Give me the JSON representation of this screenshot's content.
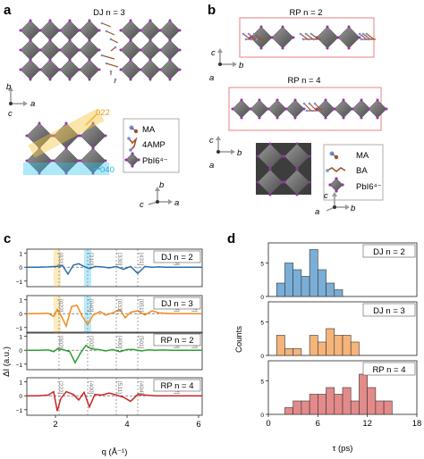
{
  "panels": {
    "a": {
      "letter": "a",
      "title": "DJ n = 3",
      "axes_top": {
        "vertical": "b",
        "horizontal": "a",
        "depth": "c"
      },
      "directions": [
        "022",
        "040"
      ],
      "legend": [
        {
          "name": "MA",
          "icon": "ma-molecule-icon"
        },
        {
          "name": "4AMP",
          "icon": "4amp-molecule-icon"
        },
        {
          "name": "PbI6⁴⁻",
          "icon": "octahedron-icon"
        }
      ],
      "axes_bottom": {
        "vertical": "b",
        "horizontal": "a",
        "depth": "c"
      }
    },
    "b": {
      "letter": "b",
      "title_top": "RP n = 2",
      "title_bottom": "RP n = 4",
      "axes_top": {
        "vertical": "c",
        "horizontal": "b",
        "depth": "a"
      },
      "axes_mid": {
        "vertical": "c",
        "horizontal": "b",
        "depth": "a"
      },
      "legend": [
        {
          "name": "MA",
          "icon": "ma-molecule-icon"
        },
        {
          "name": "BA",
          "icon": "ba-molecule-icon"
        },
        {
          "name": "PbI6⁴⁻",
          "icon": "octahedron-icon"
        }
      ],
      "axes_bottom": {
        "vertical": "c",
        "horizontal": "b",
        "depth": "a"
      }
    },
    "c": {
      "letter": "c",
      "xlabel": "q (Å⁻¹)",
      "ylabel": "ΔI (a.u.)",
      "xticks": [
        "2",
        "4",
        "6"
      ],
      "yticks": [
        "1",
        "0",
        "−1"
      ],
      "colors": {
        "dj2": "#2b6ea8",
        "dj3": "#f28a1f",
        "rp2": "#2e9e2e",
        "rp4": "#cc2424"
      },
      "highlight_colors": {
        "yellow": "#f5c542",
        "cyan": "#38c6f0"
      }
    },
    "d": {
      "letter": "d",
      "xlabel": "τ (ps)",
      "ylabel": "Counts",
      "xticks": [
        "0",
        "6",
        "12",
        "18"
      ],
      "yticks": [
        "5",
        "0"
      ],
      "colors": {
        "dj2": "#7aaed6",
        "dj3": "#f5b47a",
        "rp4": "#e38a8a"
      }
    }
  },
  "chart_data": [
    {
      "type": "line",
      "panel": "c",
      "xlim": [
        1.2,
        6.1
      ],
      "ylim": [
        -1.4,
        1.3
      ],
      "grid": false,
      "subplots": [
        {
          "label": "DJ n = 2",
          "color": "#2b6ea8",
          "peaks": [
            "[031]",
            "[310]",
            "[330]",
            "[431]",
            "[550]"
          ],
          "x": [
            1.2,
            1.5,
            1.8,
            2.0,
            2.2,
            2.35,
            2.5,
            2.65,
            2.8,
            2.95,
            3.1,
            3.3,
            3.5,
            3.7,
            3.9,
            4.1,
            4.3,
            4.5,
            4.7,
            4.9,
            5.1,
            5.3,
            5.6,
            6.1
          ],
          "y": [
            0,
            0,
            0.02,
            0.05,
            0.1,
            -0.5,
            0.15,
            0.25,
            0.05,
            -0.1,
            0.05,
            0.02,
            -0.05,
            0.05,
            -0.15,
            0.05,
            -0.45,
            0.05,
            0,
            0.02,
            0,
            0,
            0,
            0
          ]
        },
        {
          "label": "DJ n = 3",
          "color": "#f28a1f",
          "peaks": [
            "[022]",
            "[040]",
            "[033]",
            "[051]",
            "[053]",
            "[062]"
          ],
          "x": [
            1.2,
            1.5,
            1.8,
            1.95,
            2.05,
            2.15,
            2.3,
            2.45,
            2.6,
            2.75,
            2.9,
            3.05,
            3.25,
            3.4,
            3.6,
            3.8,
            3.95,
            4.1,
            4.3,
            4.5,
            4.7,
            4.9,
            5.2,
            5.6,
            6.1
          ],
          "y": [
            0,
            0,
            0.02,
            -0.2,
            0.3,
            -0.1,
            -0.9,
            0.5,
            0.6,
            -0.2,
            -0.8,
            -0.1,
            0.15,
            -0.1,
            0.05,
            0.3,
            -0.3,
            0.1,
            0.2,
            -0.1,
            0.2,
            0.05,
            0,
            0,
            0
          ]
        },
        {
          "label": "RP n = 2",
          "color": "#2e9e2e",
          "peaks": [
            "[002]",
            "[202]",
            "[400]",
            "[501]",
            "[603]",
            "[602]"
          ],
          "x": [
            1.2,
            1.5,
            1.8,
            1.95,
            2.05,
            2.2,
            2.4,
            2.55,
            2.7,
            2.85,
            3.0,
            3.2,
            3.4,
            3.6,
            3.8,
            4.0,
            4.2,
            4.4,
            4.6,
            4.8,
            5.0,
            5.2,
            5.6,
            6.1
          ],
          "y": [
            0,
            0,
            0.02,
            -0.1,
            0.1,
            0.05,
            -0.1,
            -0.9,
            -0.2,
            0.35,
            0.1,
            0.05,
            -0.05,
            0.05,
            -0.1,
            0.05,
            0.05,
            -0.05,
            0.03,
            0,
            0.02,
            0,
            0,
            0
          ]
        },
        {
          "label": "RP n = 4",
          "color": "#cc2424",
          "peaks": [
            "[222]",
            "[400]",
            "[511]",
            "[404]",
            "[622]"
          ],
          "x": [
            1.2,
            1.5,
            1.8,
            1.95,
            2.05,
            2.15,
            2.3,
            2.5,
            2.65,
            2.8,
            2.95,
            3.1,
            3.3,
            3.5,
            3.7,
            3.9,
            4.1,
            4.3,
            4.5,
            4.8,
            5.2,
            5.6,
            6.1
          ],
          "y": [
            0,
            0,
            0.05,
            0.3,
            -1.1,
            -0.2,
            0.3,
            0.1,
            -0.3,
            0.25,
            -0.8,
            0.1,
            0.05,
            0.2,
            0.05,
            -0.1,
            -0.4,
            0.1,
            0.05,
            0,
            0,
            0,
            0
          ]
        }
      ]
    },
    {
      "type": "bar",
      "panel": "d",
      "xlim": [
        0,
        18
      ],
      "bin_edges": [
        1,
        2,
        3,
        4,
        5,
        6,
        7,
        8,
        9,
        10,
        11,
        12,
        13,
        14,
        15
      ],
      "subplots": [
        {
          "label": "DJ n = 2",
          "color": "#7aaed6",
          "ylim": [
            0,
            8
          ],
          "bins": [
            [
              1,
              2,
              2
            ],
            [
              2,
              3,
              5
            ],
            [
              3,
              4,
              4
            ],
            [
              4,
              5,
              3
            ],
            [
              5,
              6,
              7
            ],
            [
              6,
              7,
              4
            ],
            [
              7,
              8,
              2
            ],
            [
              8,
              9,
              1
            ]
          ]
        },
        {
          "label": "DJ n = 3",
          "color": "#f5b47a",
          "ylim": [
            0,
            8
          ],
          "bins": [
            [
              1,
              2,
              3
            ],
            [
              2,
              3,
              1
            ],
            [
              3,
              4,
              1
            ],
            [
              5,
              6,
              3
            ],
            [
              6,
              7,
              2
            ],
            [
              7,
              8,
              4
            ],
            [
              8,
              9,
              3
            ],
            [
              9,
              10,
              3
            ],
            [
              10,
              11,
              2
            ]
          ]
        },
        {
          "label": "RP n = 4",
          "color": "#e38a8a",
          "ylim": [
            0,
            8
          ],
          "bins": [
            [
              2,
              3,
              1
            ],
            [
              3,
              4,
              2
            ],
            [
              4,
              5,
              2
            ],
            [
              5,
              6,
              3
            ],
            [
              6,
              7,
              3
            ],
            [
              7,
              8,
              4
            ],
            [
              8,
              9,
              3
            ],
            [
              9,
              10,
              4
            ],
            [
              10,
              11,
              2
            ],
            [
              11,
              12,
              6
            ],
            [
              12,
              13,
              4
            ],
            [
              13,
              14,
              2
            ],
            [
              14,
              15,
              2
            ]
          ]
        }
      ]
    }
  ]
}
